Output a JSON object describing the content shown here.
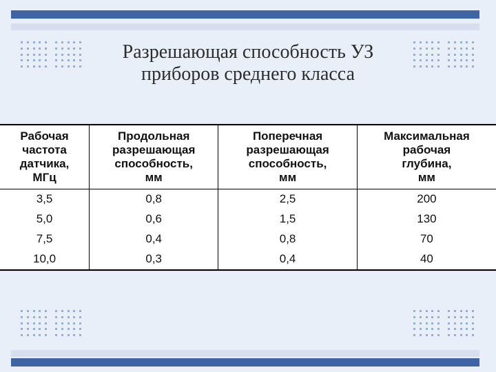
{
  "slide": {
    "background_color": "#e9eff8",
    "accent_color": "#3e64a6",
    "light_bar_color": "#d7dfee",
    "dot_color": "#9aaed2"
  },
  "title": {
    "line1": "Разрешающая способность УЗ",
    "line2": "приборов среднего класса",
    "fontsize": 28,
    "color": "#2d2d2d"
  },
  "table": {
    "type": "table",
    "header_fontsize": 17,
    "cell_fontsize": 17,
    "border_color": "#000000",
    "columns": [
      {
        "line1": "Рабочая",
        "line2": "частота",
        "line3": "датчика,",
        "line4": "МГц",
        "width": "18%"
      },
      {
        "line1": "Продольная",
        "line2": "разрешающая",
        "line3": "способность,",
        "line4": "мм",
        "width": "26%"
      },
      {
        "line1": "Поперечная",
        "line2": "разрешающая",
        "line3": "способность,",
        "line4": "мм",
        "width": "28%"
      },
      {
        "line1": "Максимальная",
        "line2": "рабочая",
        "line3": "глубина,",
        "line4": "мм",
        "width": "28%"
      }
    ],
    "rows": [
      [
        "3,5",
        "0,8",
        "2,5",
        "200"
      ],
      [
        "5,0",
        "0,6",
        "1,5",
        "130"
      ],
      [
        "7,5",
        "0,4",
        "0,8",
        "70"
      ],
      [
        "10,0",
        "0,3",
        "0,4",
        "40"
      ]
    ]
  }
}
